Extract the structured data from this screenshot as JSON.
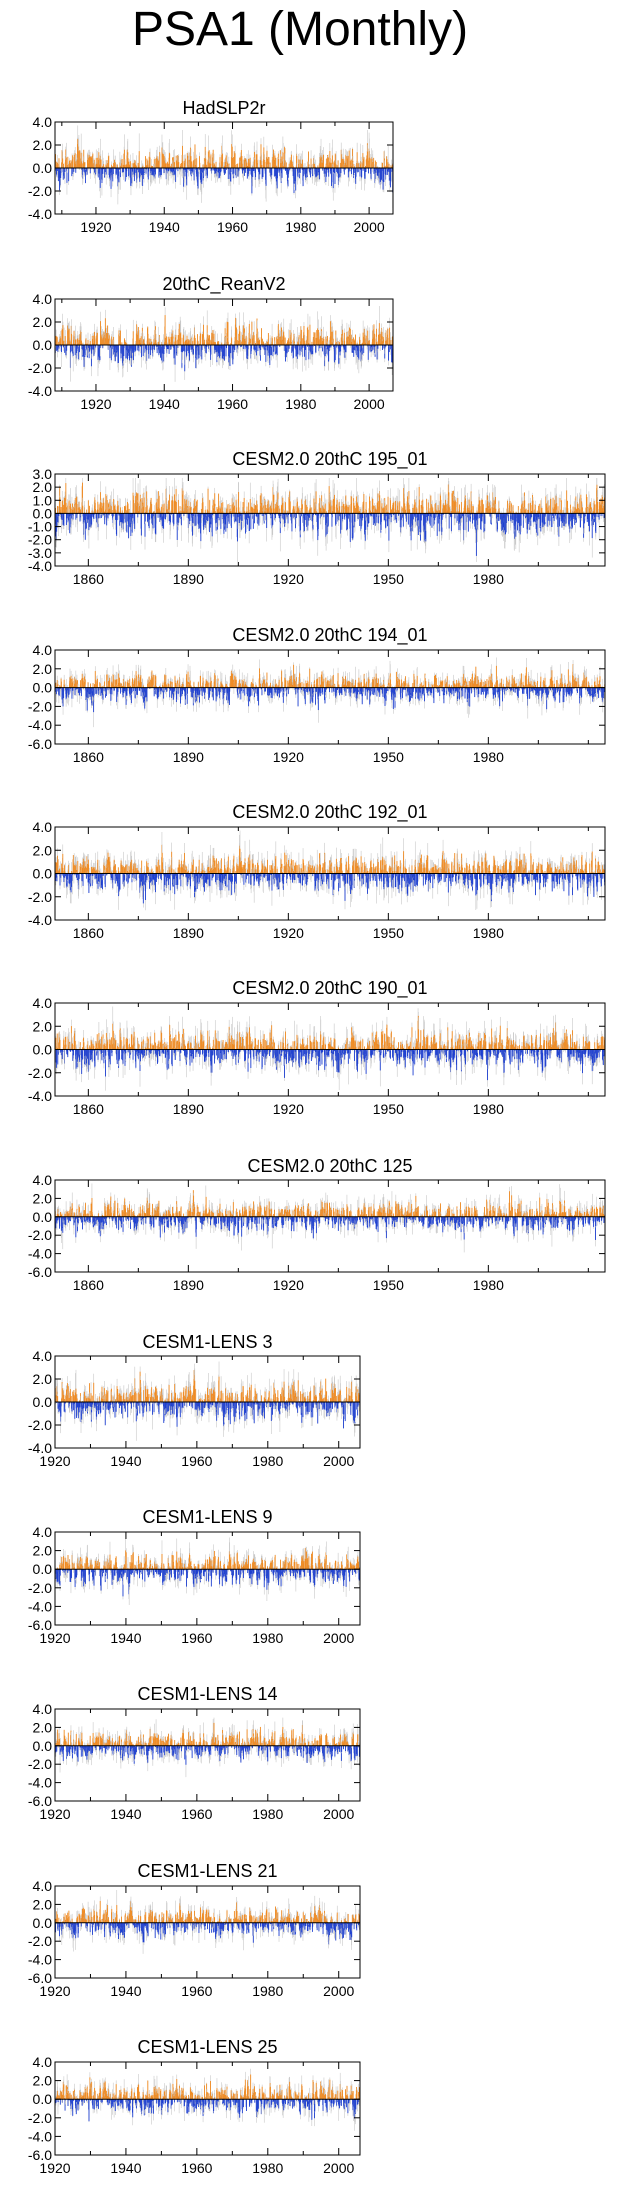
{
  "page": {
    "title": "PSA1 (Monthly)"
  },
  "colors": {
    "positive": "#f08a20",
    "negative": "#1d3fd0",
    "background_trace": "#c8c8c8",
    "axis": "#000000"
  },
  "chart_data": [
    {
      "type": "bar",
      "title": "HadSLP2r",
      "x_range": [
        1908,
        2007
      ],
      "ylim": [
        -4,
        4
      ],
      "xticks": [
        1920,
        1940,
        1960,
        1980,
        2000
      ],
      "yticks": [
        -4.0,
        -2.0,
        0.0,
        2.0,
        4.0
      ],
      "ytick_labels": [
        "-4.0",
        "-2.0",
        "0.0",
        "2.0",
        "4.0"
      ],
      "amplitude": 1.0
    },
    {
      "type": "bar",
      "title": "20thC_ReanV2",
      "x_range": [
        1908,
        2007
      ],
      "ylim": [
        -4,
        4
      ],
      "xticks": [
        1920,
        1940,
        1960,
        1980,
        2000
      ],
      "yticks": [
        -4.0,
        -2.0,
        0.0,
        2.0,
        4.0
      ],
      "ytick_labels": [
        "-4.0",
        "-2.0",
        "0.0",
        "2.0",
        "4.0"
      ],
      "amplitude": 1.0
    },
    {
      "type": "bar",
      "title": "CESM2.0 20thC 195_01",
      "x_range": [
        1850,
        2015
      ],
      "ylim": [
        -4,
        3
      ],
      "xticks": [
        1860,
        1890,
        1920,
        1950,
        1980
      ],
      "yticks": [
        -4.0,
        -3.0,
        -2.0,
        -1.0,
        0.0,
        1.0,
        2.0,
        3.0
      ],
      "ytick_labels": [
        "-4.0",
        "-3.0",
        "-2.0",
        "-1.0",
        "0.0",
        "1.0",
        "2.0",
        "3.0"
      ],
      "amplitude": 1.0
    },
    {
      "type": "bar",
      "title": "CESM2.0 20thC 194_01",
      "x_range": [
        1850,
        2015
      ],
      "ylim": [
        -6,
        4
      ],
      "xticks": [
        1860,
        1890,
        1920,
        1950,
        1980
      ],
      "yticks": [
        -6.0,
        -4.0,
        -2.0,
        0.0,
        2.0,
        4.0
      ],
      "ytick_labels": [
        "-6.0",
        "-4.0",
        "-2.0",
        "0.0",
        "2.0",
        "4.0"
      ],
      "amplitude": 1.0
    },
    {
      "type": "bar",
      "title": "CESM2.0 20thC 192_01",
      "x_range": [
        1850,
        2015
      ],
      "ylim": [
        -4,
        4
      ],
      "xticks": [
        1860,
        1890,
        1920,
        1950,
        1980
      ],
      "yticks": [
        -4.0,
        -2.0,
        0.0,
        2.0,
        4.0
      ],
      "ytick_labels": [
        "-4.0",
        "-2.0",
        "0.0",
        "2.0",
        "4.0"
      ],
      "amplitude": 1.0
    },
    {
      "type": "bar",
      "title": "CESM2.0 20thC 190_01",
      "x_range": [
        1850,
        2015
      ],
      "ylim": [
        -4,
        4
      ],
      "xticks": [
        1860,
        1890,
        1920,
        1950,
        1980
      ],
      "yticks": [
        -4.0,
        -2.0,
        0.0,
        2.0,
        4.0
      ],
      "ytick_labels": [
        "-4.0",
        "-2.0",
        "0.0",
        "2.0",
        "4.0"
      ],
      "amplitude": 1.0
    },
    {
      "type": "bar",
      "title": "CESM2.0 20thC 125",
      "x_range": [
        1850,
        2015
      ],
      "ylim": [
        -6,
        4
      ],
      "xticks": [
        1860,
        1890,
        1920,
        1950,
        1980
      ],
      "yticks": [
        -6.0,
        -4.0,
        -2.0,
        0.0,
        2.0,
        4.0
      ],
      "ytick_labels": [
        "-6.0",
        "-4.0",
        "-2.0",
        "0.0",
        "2.0",
        "4.0"
      ],
      "amplitude": 1.0
    },
    {
      "type": "bar",
      "title": "CESM1-LENS 3",
      "x_range": [
        1920,
        2006
      ],
      "ylim": [
        -4,
        4
      ],
      "xticks": [
        1920,
        1940,
        1960,
        1980,
        2000
      ],
      "yticks": [
        -4.0,
        -2.0,
        0.0,
        2.0,
        4.0
      ],
      "ytick_labels": [
        "-4.0",
        "-2.0",
        "0.0",
        "2.0",
        "4.0"
      ],
      "amplitude": 1.0
    },
    {
      "type": "bar",
      "title": "CESM1-LENS 9",
      "x_range": [
        1920,
        2006
      ],
      "ylim": [
        -6,
        4
      ],
      "xticks": [
        1920,
        1940,
        1960,
        1980,
        2000
      ],
      "yticks": [
        -6.0,
        -4.0,
        -2.0,
        0.0,
        2.0,
        4.0
      ],
      "ytick_labels": [
        "-6.0",
        "-4.0",
        "-2.0",
        "0.0",
        "2.0",
        "4.0"
      ],
      "amplitude": 1.0
    },
    {
      "type": "bar",
      "title": "CESM1-LENS 14",
      "x_range": [
        1920,
        2006
      ],
      "ylim": [
        -6,
        4
      ],
      "xticks": [
        1920,
        1940,
        1960,
        1980,
        2000
      ],
      "yticks": [
        -6.0,
        -4.0,
        -2.0,
        0.0,
        2.0,
        4.0
      ],
      "ytick_labels": [
        "-6.0",
        "-4.0",
        "-2.0",
        "0.0",
        "2.0",
        "4.0"
      ],
      "amplitude": 1.0
    },
    {
      "type": "bar",
      "title": "CESM1-LENS 21",
      "x_range": [
        1920,
        2006
      ],
      "ylim": [
        -6,
        4
      ],
      "xticks": [
        1920,
        1940,
        1960,
        1980,
        2000
      ],
      "yticks": [
        -6.0,
        -4.0,
        -2.0,
        0.0,
        2.0,
        4.0
      ],
      "ytick_labels": [
        "-6.0",
        "-4.0",
        "-2.0",
        "0.0",
        "2.0",
        "4.0"
      ],
      "amplitude": 1.0
    },
    {
      "type": "bar",
      "title": "CESM1-LENS 25",
      "x_range": [
        1920,
        2006
      ],
      "ylim": [
        -6,
        4
      ],
      "xticks": [
        1920,
        1940,
        1960,
        1980,
        2000
      ],
      "yticks": [
        -6.0,
        -4.0,
        -2.0,
        0.0,
        2.0,
        4.0
      ],
      "ytick_labels": [
        "-6.0",
        "-4.0",
        "-2.0",
        "0.0",
        "2.0",
        "4.0"
      ],
      "amplitude": 1.0
    }
  ]
}
